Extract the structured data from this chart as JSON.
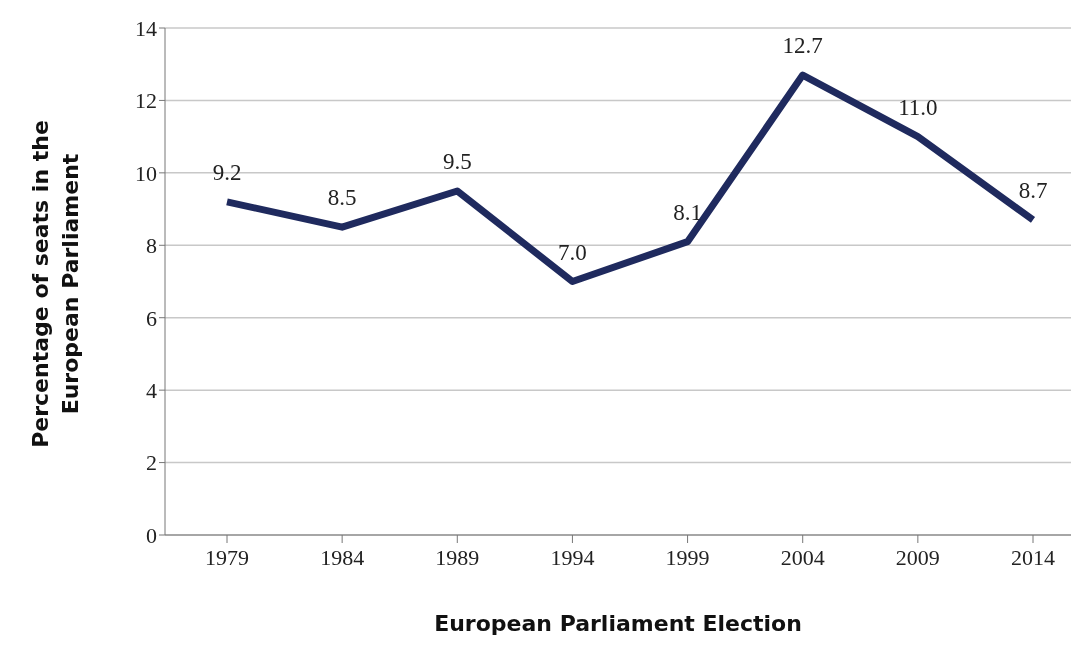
{
  "chart_data": {
    "type": "line",
    "xlabel": "European Parliament Election",
    "ylabel": "Percentage of seats in the European Parliament",
    "categories": [
      "1979",
      "1984",
      "1989",
      "1994",
      "1999",
      "2004",
      "2009",
      "2014"
    ],
    "series": [
      {
        "color": "#1f2a5e",
        "values": [
          9.2,
          8.5,
          9.5,
          7.0,
          8.1,
          12.7,
          11.0,
          8.7
        ]
      }
    ],
    "value_labels": [
      "9.2",
      "8.5",
      "9.5",
      "7.0",
      "8.1",
      "12.7",
      "11.0",
      "8.7"
    ],
    "ylim": [
      0,
      14
    ],
    "yticks": [
      0,
      2,
      4,
      6,
      8,
      10,
      12,
      14
    ],
    "grid": "y",
    "legend": false,
    "marker": "none",
    "line_style": "solid"
  }
}
